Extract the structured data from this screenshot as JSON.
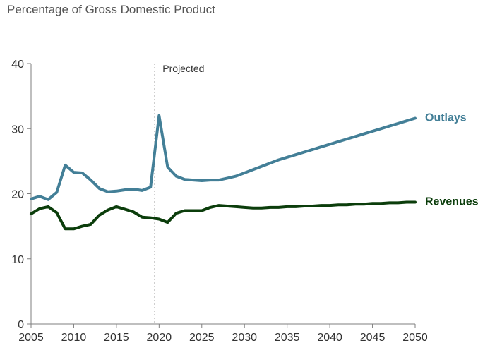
{
  "chart_data": {
    "type": "line",
    "title": "Percentage of Gross Domestic Product",
    "xlim": [
      2005,
      2050
    ],
    "ylim": [
      0,
      40
    ],
    "x_ticks": [
      2005,
      2010,
      2015,
      2020,
      2025,
      2030,
      2035,
      2040,
      2045,
      2050
    ],
    "y_ticks": [
      0,
      10,
      20,
      30,
      40
    ],
    "grid": false,
    "annotations": [
      {
        "text": "Projected",
        "x": 2019.5
      }
    ],
    "colors": {
      "outlays": "#437f97",
      "revenues": "#0b3d0b",
      "axis": "#7f7f7f"
    },
    "series": [
      {
        "name": "Outlays",
        "color": "#437f97",
        "x": [
          2005,
          2006,
          2007,
          2008,
          2009,
          2010,
          2011,
          2012,
          2013,
          2014,
          2015,
          2016,
          2017,
          2018,
          2019,
          2020,
          2021,
          2022,
          2023,
          2024,
          2025,
          2026,
          2027,
          2028,
          2029,
          2030,
          2031,
          2032,
          2033,
          2034,
          2035,
          2036,
          2037,
          2038,
          2039,
          2040,
          2041,
          2042,
          2043,
          2044,
          2045,
          2046,
          2047,
          2048,
          2049,
          2050
        ],
        "values": [
          19.2,
          19.6,
          19.1,
          20.2,
          24.4,
          23.3,
          23.2,
          22.1,
          20.8,
          20.3,
          20.4,
          20.6,
          20.7,
          20.5,
          21.0,
          32.0,
          24.1,
          22.7,
          22.2,
          22.1,
          22.0,
          22.1,
          22.1,
          22.4,
          22.7,
          23.2,
          23.7,
          24.2,
          24.7,
          25.2,
          25.6,
          26.0,
          26.4,
          26.8,
          27.2,
          27.6,
          28.0,
          28.4,
          28.8,
          29.2,
          29.6,
          30.0,
          30.4,
          30.8,
          31.2,
          31.6
        ]
      },
      {
        "name": "Revenues",
        "color": "#0b3d0b",
        "x": [
          2005,
          2006,
          2007,
          2008,
          2009,
          2010,
          2011,
          2012,
          2013,
          2014,
          2015,
          2016,
          2017,
          2018,
          2019,
          2020,
          2021,
          2022,
          2023,
          2024,
          2025,
          2026,
          2027,
          2028,
          2029,
          2030,
          2031,
          2032,
          2033,
          2034,
          2035,
          2036,
          2037,
          2038,
          2039,
          2040,
          2041,
          2042,
          2043,
          2044,
          2045,
          2046,
          2047,
          2048,
          2049,
          2050
        ],
        "values": [
          16.9,
          17.7,
          18.0,
          17.1,
          14.6,
          14.6,
          15.0,
          15.3,
          16.7,
          17.5,
          18.0,
          17.6,
          17.2,
          16.4,
          16.3,
          16.1,
          15.6,
          17.0,
          17.4,
          17.4,
          17.4,
          17.9,
          18.2,
          18.1,
          18.0,
          17.9,
          17.8,
          17.8,
          17.9,
          17.9,
          18.0,
          18.0,
          18.1,
          18.1,
          18.2,
          18.2,
          18.3,
          18.3,
          18.4,
          18.4,
          18.5,
          18.5,
          18.6,
          18.6,
          18.7,
          18.7
        ]
      }
    ]
  }
}
